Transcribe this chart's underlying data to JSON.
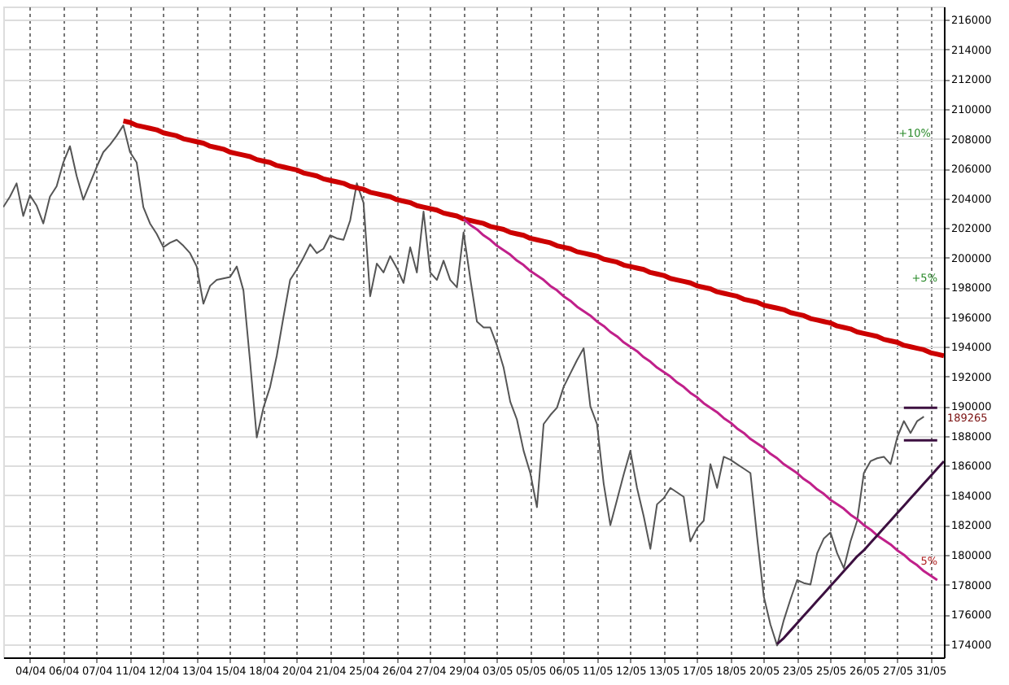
{
  "chart_data": {
    "type": "line",
    "categories": [
      null,
      null,
      null,
      null,
      "04/04",
      null,
      null,
      null,
      null,
      "06/04",
      null,
      null,
      null,
      null,
      "07/04",
      null,
      null,
      null,
      null,
      "11/04",
      null,
      null,
      null,
      null,
      "12/04",
      null,
      null,
      null,
      null,
      "13/04",
      null,
      null,
      null,
      null,
      "15/04",
      null,
      null,
      null,
      null,
      "18/04",
      null,
      null,
      null,
      null,
      "20/04",
      null,
      null,
      null,
      null,
      "21/04",
      null,
      null,
      null,
      null,
      "25/04",
      null,
      null,
      null,
      null,
      "26/04",
      null,
      null,
      null,
      null,
      "27/04",
      null,
      null,
      null,
      null,
      "29/04",
      null,
      null,
      null,
      null,
      "03/05",
      null,
      null,
      null,
      null,
      "05/05",
      null,
      null,
      null,
      null,
      "06/05",
      null,
      null,
      null,
      null,
      "11/05",
      null,
      null,
      null,
      null,
      "12/05",
      null,
      null,
      null,
      null,
      "13/05",
      null,
      null,
      null,
      null,
      "17/05",
      null,
      null,
      null,
      null,
      "18/05",
      null,
      null,
      null,
      null,
      "20/05",
      null,
      null,
      null,
      null,
      "23/05",
      null,
      null,
      null,
      null,
      "25/05",
      null,
      null,
      null,
      null,
      "26/05",
      null,
      null,
      null,
      null,
      "27/05",
      null,
      null,
      null,
      null,
      "31/05",
      null,
      null
    ],
    "ylim": [
      173100,
      216900
    ],
    "yticks": [
      174000,
      176000,
      178000,
      180000,
      182000,
      184000,
      186000,
      188000,
      190000,
      192000,
      194000,
      196000,
      198000,
      200000,
      202000,
      204000,
      206000,
      208000,
      210000,
      212000,
      214000,
      216000
    ],
    "grid": true,
    "legend": false,
    "marker": "none",
    "line_style": "solid",
    "series": [
      {
        "color": "#555555",
        "values": [
          203400,
          204100,
          205000,
          202800,
          204200,
          203500,
          202300,
          204100,
          204800,
          206400,
          207500,
          205500,
          203900,
          205000,
          206100,
          207100,
          207600,
          208200,
          208900,
          207100,
          206400,
          203400,
          202300,
          201600,
          200700,
          201000,
          201200,
          200800,
          200300,
          199400,
          196900,
          198100,
          198500,
          198600,
          198700,
          199400,
          197800,
          193000,
          187900,
          189900,
          191300,
          193400,
          196000,
          198500,
          199200,
          200000,
          200900,
          200300,
          200600,
          201500,
          201300,
          201200,
          202500,
          205000,
          203700,
          197400,
          199600,
          199000,
          200100,
          199300,
          198300,
          200700,
          199000,
          203100,
          199000,
          198500,
          199800,
          198500,
          198000,
          201700,
          198600,
          195700,
          195300,
          195300,
          194100,
          192600,
          190300,
          189100,
          187000,
          185500,
          183200,
          188800,
          189400,
          189900,
          191300,
          192200,
          193100,
          193900,
          190000,
          188800,
          184800,
          182000,
          183700,
          185400,
          187000,
          184500,
          182600,
          180400,
          183400,
          183800,
          184500,
          184200,
          183900,
          180900,
          181800,
          182300,
          186100,
          184500,
          186600,
          186400,
          186100,
          185800,
          185500,
          181200,
          177200,
          175300,
          173900,
          175600,
          177000,
          178300,
          178100,
          178000,
          180100,
          181100,
          181500,
          180100,
          179100,
          180900,
          182300,
          185500,
          186300,
          186500,
          186600,
          186100,
          187900,
          189000,
          188200,
          189000,
          189300,
          null,
          null,
          null
        ]
      },
      {
        "color": "#cc0000",
        "values": [
          null,
          null,
          null,
          null,
          null,
          null,
          null,
          null,
          null,
          null,
          null,
          null,
          null,
          null,
          null,
          null,
          null,
          null,
          209200,
          209100,
          208900,
          208800,
          208700,
          208600,
          208400,
          208300,
          208200,
          208000,
          207900,
          207800,
          207700,
          207500,
          207400,
          207300,
          207100,
          207000,
          206900,
          206800,
          206600,
          206500,
          206400,
          206200,
          206100,
          206000,
          205900,
          205700,
          205600,
          205500,
          205300,
          205200,
          205100,
          205000,
          204800,
          204700,
          204600,
          204400,
          204300,
          204200,
          204100,
          203900,
          203800,
          203700,
          203500,
          203400,
          203300,
          203200,
          203000,
          202900,
          202800,
          202600,
          202500,
          202400,
          202300,
          202100,
          202000,
          201900,
          201700,
          201600,
          201500,
          201300,
          201200,
          201100,
          201000,
          200800,
          200700,
          200600,
          200400,
          200300,
          200200,
          200100,
          199900,
          199800,
          199700,
          199500,
          199400,
          199300,
          199200,
          199000,
          198900,
          198800,
          198600,
          198500,
          198400,
          198300,
          198100,
          198000,
          197900,
          197700,
          197600,
          197500,
          197400,
          197200,
          197100,
          197000,
          196800,
          196700,
          196600,
          196500,
          196300,
          196200,
          196100,
          195900,
          195800,
          195700,
          195600,
          195400,
          195300,
          195200,
          195000,
          194900,
          194800,
          194700,
          194500,
          194400,
          194300,
          194100,
          194000,
          193900,
          193800,
          193600,
          193500,
          193400
        ]
      },
      {
        "color": "#c0208a",
        "values": [
          null,
          null,
          null,
          null,
          null,
          null,
          null,
          null,
          null,
          null,
          null,
          null,
          null,
          null,
          null,
          null,
          null,
          null,
          null,
          null,
          null,
          null,
          null,
          null,
          null,
          null,
          null,
          null,
          null,
          null,
          null,
          null,
          null,
          null,
          null,
          null,
          null,
          null,
          null,
          null,
          null,
          null,
          null,
          null,
          null,
          null,
          null,
          null,
          null,
          null,
          null,
          null,
          null,
          null,
          null,
          null,
          null,
          null,
          null,
          null,
          null,
          null,
          null,
          null,
          null,
          null,
          null,
          null,
          null,
          202600,
          202200,
          201900,
          201500,
          201200,
          200800,
          200500,
          200200,
          199800,
          199500,
          199100,
          198800,
          198500,
          198100,
          197800,
          197400,
          197100,
          196700,
          196400,
          196100,
          195700,
          195400,
          195000,
          194700,
          194300,
          194000,
          193700,
          193300,
          193000,
          192600,
          192300,
          192000,
          191600,
          191300,
          190900,
          190600,
          190200,
          189900,
          189600,
          189200,
          188900,
          188500,
          188200,
          187800,
          187500,
          187200,
          186800,
          186500,
          186100,
          185800,
          185500,
          185100,
          184800,
          184400,
          184100,
          183700,
          183400,
          183100,
          182700,
          182400,
          182000,
          181700,
          181300,
          181000,
          180700,
          180300,
          180000,
          179600,
          179300,
          178900,
          178600,
          178300,
          null
        ]
      },
      {
        "color": "#3c1040",
        "values": [
          null,
          null,
          null,
          null,
          null,
          null,
          null,
          null,
          null,
          null,
          null,
          null,
          null,
          null,
          null,
          null,
          null,
          null,
          null,
          null,
          null,
          null,
          null,
          null,
          null,
          null,
          null,
          null,
          null,
          null,
          null,
          null,
          null,
          null,
          null,
          null,
          null,
          null,
          null,
          null,
          null,
          null,
          null,
          null,
          null,
          null,
          null,
          null,
          null,
          null,
          null,
          null,
          null,
          null,
          null,
          null,
          null,
          null,
          null,
          null,
          null,
          null,
          null,
          null,
          null,
          null,
          null,
          null,
          null,
          null,
          null,
          null,
          null,
          null,
          null,
          null,
          null,
          null,
          null,
          null,
          null,
          null,
          null,
          null,
          null,
          null,
          null,
          null,
          null,
          null,
          null,
          null,
          null,
          null,
          null,
          null,
          null,
          null,
          null,
          null,
          null,
          null,
          null,
          null,
          null,
          null,
          null,
          null,
          null,
          null,
          null,
          null,
          null,
          null,
          null,
          null,
          174000,
          174400,
          174900,
          175400,
          175900,
          176400,
          176900,
          177400,
          177900,
          178400,
          178900,
          179400,
          179900,
          180300,
          180800,
          181300,
          181800,
          182300,
          182800,
          183300,
          183800,
          184300,
          184800,
          185300,
          185800,
          186300
        ]
      },
      {
        "color": "#3c1040",
        "values": [
          null,
          null,
          null,
          null,
          null,
          null,
          null,
          null,
          null,
          null,
          null,
          null,
          null,
          null,
          null,
          null,
          null,
          null,
          null,
          null,
          null,
          null,
          null,
          null,
          null,
          null,
          null,
          null,
          null,
          null,
          null,
          null,
          null,
          null,
          null,
          null,
          null,
          null,
          null,
          null,
          null,
          null,
          null,
          null,
          null,
          null,
          null,
          null,
          null,
          null,
          null,
          null,
          null,
          null,
          null,
          null,
          null,
          null,
          null,
          null,
          null,
          null,
          null,
          null,
          null,
          null,
          null,
          null,
          null,
          null,
          null,
          null,
          null,
          null,
          null,
          null,
          null,
          null,
          null,
          null,
          null,
          null,
          null,
          null,
          null,
          null,
          null,
          null,
          null,
          null,
          null,
          null,
          null,
          null,
          null,
          null,
          null,
          null,
          null,
          null,
          null,
          null,
          null,
          null,
          null,
          null,
          null,
          null,
          null,
          null,
          null,
          null,
          null,
          null,
          null,
          null,
          null,
          null,
          null,
          null,
          null,
          null,
          null,
          null,
          null,
          null,
          null,
          null,
          null,
          null,
          null,
          null,
          null,
          null,
          null,
          189900,
          189900,
          189900,
          189900,
          189900,
          189900,
          null
        ]
      },
      {
        "color": "#3c1040",
        "values": [
          null,
          null,
          null,
          null,
          null,
          null,
          null,
          null,
          null,
          null,
          null,
          null,
          null,
          null,
          null,
          null,
          null,
          null,
          null,
          null,
          null,
          null,
          null,
          null,
          null,
          null,
          null,
          null,
          null,
          null,
          null,
          null,
          null,
          null,
          null,
          null,
          null,
          null,
          null,
          null,
          null,
          null,
          null,
          null,
          null,
          null,
          null,
          null,
          null,
          null,
          null,
          null,
          null,
          null,
          null,
          null,
          null,
          null,
          null,
          null,
          null,
          null,
          null,
          null,
          null,
          null,
          null,
          null,
          null,
          null,
          null,
          null,
          null,
          null,
          null,
          null,
          null,
          null,
          null,
          null,
          null,
          null,
          null,
          null,
          null,
          null,
          null,
          null,
          null,
          null,
          null,
          null,
          null,
          null,
          null,
          null,
          null,
          null,
          null,
          null,
          null,
          null,
          null,
          null,
          null,
          null,
          null,
          null,
          null,
          null,
          null,
          null,
          null,
          null,
          null,
          null,
          null,
          null,
          null,
          null,
          null,
          null,
          null,
          null,
          null,
          null,
          null,
          null,
          null,
          null,
          null,
          null,
          null,
          null,
          null,
          187700,
          187700,
          187700,
          187700,
          187700,
          187700,
          null
        ]
      }
    ],
    "annotations": [
      "+10%",
      "+5%",
      "5%",
      "189265"
    ]
  }
}
